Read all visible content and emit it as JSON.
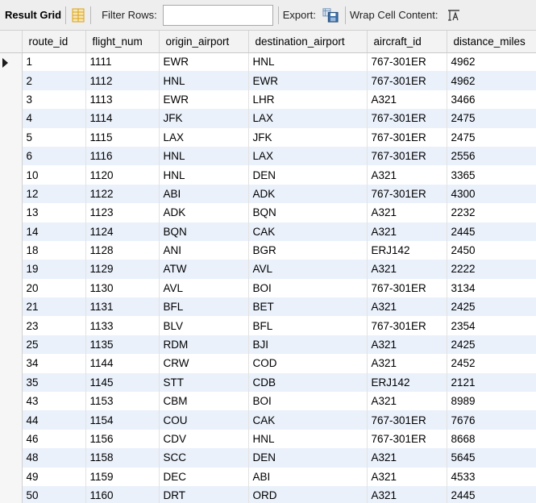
{
  "toolbar": {
    "title": "Result Grid",
    "filter_label": "Filter Rows:",
    "filter_value": "",
    "export_label": "Export:",
    "wrap_label": "Wrap Cell Content:"
  },
  "grid": {
    "columns": [
      "route_id",
      "flight_num",
      "origin_airport",
      "destination_airport",
      "aircraft_id",
      "distance_miles"
    ],
    "rows": [
      [
        "1",
        "1111",
        "EWR",
        "HNL",
        "767-301ER",
        "4962"
      ],
      [
        "2",
        "1112",
        "HNL",
        "EWR",
        "767-301ER",
        "4962"
      ],
      [
        "3",
        "1113",
        "EWR",
        "LHR",
        "A321",
        "3466"
      ],
      [
        "4",
        "1114",
        "JFK",
        "LAX",
        "767-301ER",
        "2475"
      ],
      [
        "5",
        "1115",
        "LAX",
        "JFK",
        "767-301ER",
        "2475"
      ],
      [
        "6",
        "1116",
        "HNL",
        "LAX",
        "767-301ER",
        "2556"
      ],
      [
        "10",
        "1120",
        "HNL",
        "DEN",
        "A321",
        "3365"
      ],
      [
        "12",
        "1122",
        "ABI",
        "ADK",
        "767-301ER",
        "4300"
      ],
      [
        "13",
        "1123",
        "ADK",
        "BQN",
        "A321",
        "2232"
      ],
      [
        "14",
        "1124",
        "BQN",
        "CAK",
        "A321",
        "2445"
      ],
      [
        "18",
        "1128",
        "ANI",
        "BGR",
        "ERJ142",
        "2450"
      ],
      [
        "19",
        "1129",
        "ATW",
        "AVL",
        "A321",
        "2222"
      ],
      [
        "20",
        "1130",
        "AVL",
        "BOI",
        "767-301ER",
        "3134"
      ],
      [
        "21",
        "1131",
        "BFL",
        "BET",
        "A321",
        "2425"
      ],
      [
        "23",
        "1133",
        "BLV",
        "BFL",
        "767-301ER",
        "2354"
      ],
      [
        "25",
        "1135",
        "RDM",
        "BJI",
        "A321",
        "2425"
      ],
      [
        "34",
        "1144",
        "CRW",
        "COD",
        "A321",
        "2452"
      ],
      [
        "35",
        "1145",
        "STT",
        "CDB",
        "ERJ142",
        "2121"
      ],
      [
        "43",
        "1153",
        "CBM",
        "BOI",
        "A321",
        "8989"
      ],
      [
        "44",
        "1154",
        "COU",
        "CAK",
        "767-301ER",
        "7676"
      ],
      [
        "46",
        "1156",
        "CDV",
        "HNL",
        "767-301ER",
        "8668"
      ],
      [
        "48",
        "1158",
        "SCC",
        "DEN",
        "A321",
        "5645"
      ],
      [
        "49",
        "1159",
        "DEC",
        "ABI",
        "A321",
        "4533"
      ],
      [
        "50",
        "1160",
        "DRT",
        "ORD",
        "A321",
        "2445"
      ]
    ]
  },
  "colors": {
    "toolbar_bg": "#eeeeee",
    "alt_row": "#eaf1fb",
    "grid_icon": "#d9a21b",
    "save_icon": "#3a6ea8"
  }
}
